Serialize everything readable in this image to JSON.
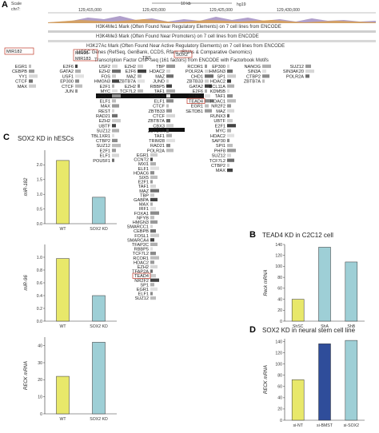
{
  "genome_browser": {
    "panel_label": "A",
    "scale_label": "Scale",
    "chrom_label": "chr7:",
    "scale_bar_label": "10 kb",
    "assembly": "hg19",
    "coords": [
      "129,415,000",
      "129,420,000",
      "129,425,000",
      "129,430,000"
    ],
    "tracks": [
      "H3K4Me1 Mark (Often Found Near Regulatory Elements) on 7 cell lines from ENCODE",
      "H3K4Me3 Mark (Often Found Near Promoters) on 7 cell lines from ENCODE",
      "H3K27Ac Mark (Often Found Near Active Regulatory Elements) on 7 cell lines from ENCODE",
      "UCSC Genes (RefSeq, GenBank, CCDS, Rfam, tRNAs & Comparative Genomics)",
      "Transcription Factor ChIP-seq (161 factors) from ENCODE with Factorbook Motifs"
    ],
    "genes": [
      "MIR182",
      "MIR96",
      "MIR183",
      "SOX2",
      "TSS"
    ],
    "tf_labels": [
      "EGR1",
      "CEBPB",
      "YY1",
      "CTCF",
      "MAX",
      "E2F6",
      "GATA2",
      "USF1",
      "EP300",
      "CTCF",
      "JUN",
      "USF2",
      "EZH2",
      "FOS",
      "HMGN3",
      "E2F1",
      "MYC",
      "CHD2",
      "ELF1",
      "MAX",
      "REST",
      "RAD21",
      "EZH2",
      "UBTF",
      "SUZ12",
      "TBL1XR1",
      "CTBP2",
      "SUZ12",
      "E2F1",
      "ELF1",
      "POU5F1",
      "EZH2",
      "E2F6",
      "MAZ",
      "ZBTB7A",
      "EZH2",
      "TCF7L2",
      "TBP",
      "HDAC2",
      "MAZ",
      "JUND",
      "RBBP5",
      "TAF1",
      "GABPA",
      "ELF1",
      "CTCF",
      "ZBTB33",
      "CTCF",
      "ZBTB7A",
      "CBX3",
      "ZBTB7A",
      "TAF1",
      "TRIM28",
      "RAD21",
      "POLR2A",
      "RCOR1",
      "POLR2A",
      "CHD1",
      "ZBTB33",
      "GATA2",
      "E2F6",
      "CTBP2",
      "TEAD4",
      "EGR1",
      "SETDB1",
      "EP300",
      "HMGN3",
      "SP1",
      "HDAC2",
      "BCL11A",
      "KDM5B",
      "TAF1",
      "HDAC1",
      "NR2F2",
      "MAZ",
      "RUNX3",
      "UBTF",
      "E2F1",
      "MYC",
      "HDAC2",
      "SAP30",
      "SPI1",
      "PHF8",
      "SUZ12",
      "TCF7L2",
      "CTBP2",
      "MAX",
      "NANOG",
      "SIN3A",
      "CTBP2",
      "ZBTB7A",
      "SUZ12",
      "SIN3AK20",
      "POLR2A",
      "EGR1",
      "CCNT2",
      "MXI1",
      "ELF1",
      "HDAC6",
      "SIX5",
      "E2F1",
      "TAF1",
      "MAZ",
      "TBP",
      "GABPA",
      "MAX",
      "IRF1",
      "FOXA1",
      "NFYB",
      "HMGN3",
      "SMARCC1",
      "CEBPB",
      "FOSL1",
      "SMARCA4",
      "TFAP2C",
      "RBBP5",
      "TCF7L2",
      "RCOR1",
      "HDAC2",
      "EZH2",
      "TFAP2A",
      "TEAD4",
      "NR2F2",
      "SP1",
      "EGR1",
      "ELF1",
      "SUZ12"
    ]
  },
  "panel_c": {
    "panel_label": "C",
    "title": "SOX2 KD in hESCs"
  },
  "panel_b": {
    "panel_label": "B",
    "title": "TEAD4 KD in C2C12 cell"
  },
  "panel_d": {
    "panel_label": "D",
    "title": "SOX2 KD in neural stem cell line"
  },
  "chart_data": [
    {
      "type": "bar",
      "panel": "C-top",
      "categories": [
        "WT",
        "SOX2 KD"
      ],
      "values": [
        2.15,
        0.9
      ],
      "ylabel": "miR-182",
      "ylim": [
        0,
        2.5
      ],
      "yticks": [
        "0.0",
        "0.5",
        "1.0",
        "1.5",
        "2.0"
      ],
      "colors": [
        "#e8e86a",
        "#9ecfd6"
      ]
    },
    {
      "type": "bar",
      "panel": "C-middle",
      "categories": [
        "WT",
        "SOX2 KD"
      ],
      "values": [
        0.98,
        0.4
      ],
      "ylabel": "miR-96",
      "ylim": [
        0,
        1.2
      ],
      "yticks": [
        "0.0",
        "0.2",
        "0.4",
        "0.6",
        "0.8",
        "1.0"
      ],
      "colors": [
        "#e8e86a",
        "#9ecfd6"
      ]
    },
    {
      "type": "bar",
      "panel": "C-bottom",
      "categories": [
        "WT",
        "SOX2 KD"
      ],
      "values": [
        22,
        42
      ],
      "ylabel": "RECK mRNA",
      "ylim": [
        0,
        45
      ],
      "yticks": [
        "0",
        "10",
        "20",
        "30",
        "40"
      ],
      "colors": [
        "#e8e86a",
        "#9ecfd6"
      ]
    },
    {
      "type": "bar",
      "panel": "B",
      "categories": [
        "ShSC",
        "ShA",
        "ShB"
      ],
      "values": [
        40,
        135,
        108
      ],
      "ylabel": "Reck mRNA",
      "ylim": [
        0,
        140
      ],
      "yticks": [
        "0",
        "20",
        "40",
        "60",
        "80",
        "100",
        "120",
        "140"
      ],
      "colors": [
        "#e8e86a",
        "#9ecfd6",
        "#9ecfd6"
      ]
    },
    {
      "type": "bar",
      "panel": "D",
      "categories": [
        "si-NT",
        "si-BMST",
        "si-SOX2"
      ],
      "values": [
        72,
        136,
        142
      ],
      "ylabel": "RECK mRNA",
      "ylim": [
        0,
        145
      ],
      "yticks": [
        "0",
        "20",
        "40",
        "60",
        "80",
        "100",
        "120",
        "140"
      ],
      "colors": [
        "#e8e86a",
        "#2f4d9a",
        "#9ecfd6"
      ]
    }
  ]
}
